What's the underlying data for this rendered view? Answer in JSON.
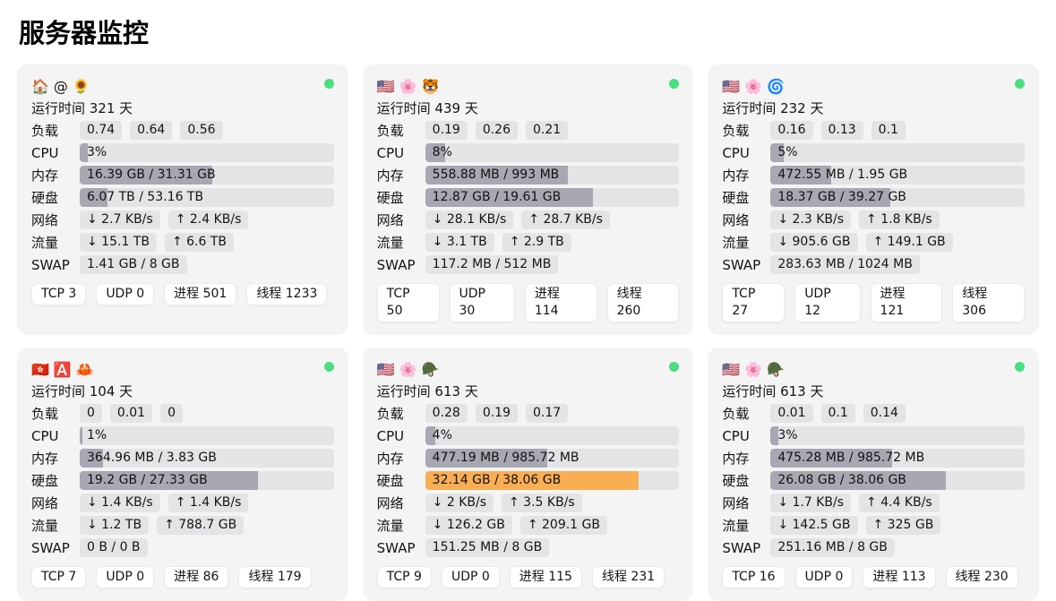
{
  "page": {
    "title": "服务器监控"
  },
  "colors": {
    "card_bg": "#f4f4f5",
    "pill_bg": "#e4e4e7",
    "bar_track": "#e4e4e7",
    "bar_fill": "#a8a8b2",
    "bar_fill_warning": "#f9ae54",
    "online_dot": "#4ade80"
  },
  "labels": {
    "load": "负载",
    "cpu": "CPU",
    "mem": "内存",
    "disk": "硬盘",
    "net": "网络",
    "traffic": "流量",
    "swap": "SWAP"
  },
  "cards": [
    {
      "icons": [
        "🏠",
        "@",
        "🌻"
      ],
      "uptime": "运行时间 321 天",
      "load": [
        "0.74",
        "0.64",
        "0.56"
      ],
      "cpu": {
        "text": "3%",
        "percent": 3
      },
      "mem": {
        "text": "16.39 GB / 31.31 GB",
        "percent": 52
      },
      "disk": {
        "text": "6.07 TB / 53.16 TB",
        "percent": 11,
        "fill": "#a8a8b2"
      },
      "net_down": "↓ 2.7 KB/s",
      "net_up": "↑ 2.4 KB/s",
      "traffic_down": "↓ 15.1 TB",
      "traffic_up": "↑ 6.6 TB",
      "swap": "1.41 GB / 8 GB",
      "badges": [
        "TCP 3",
        "UDP 0",
        "进程 501",
        "线程 1233"
      ]
    },
    {
      "icons": [
        "🇺🇸",
        "🌸",
        "🐯"
      ],
      "uptime": "运行时间 439 天",
      "load": [
        "0.19",
        "0.26",
        "0.21"
      ],
      "cpu": {
        "text": "8%",
        "percent": 8
      },
      "mem": {
        "text": "558.88 MB / 993 MB",
        "percent": 56
      },
      "disk": {
        "text": "12.87 GB / 19.61 GB",
        "percent": 66,
        "fill": "#a8a8b2"
      },
      "net_down": "↓ 28.1 KB/s",
      "net_up": "↑ 28.7 KB/s",
      "traffic_down": "↓ 3.1 TB",
      "traffic_up": "↑ 2.9 TB",
      "swap": "117.2 MB / 512 MB",
      "badges": [
        "TCP 50",
        "UDP 30",
        "进程 114",
        "线程 260"
      ]
    },
    {
      "icons": [
        "🇺🇸",
        "🌸",
        "🌀"
      ],
      "uptime": "运行时间 232 天",
      "load": [
        "0.16",
        "0.13",
        "0.1"
      ],
      "cpu": {
        "text": "5%",
        "percent": 5
      },
      "mem": {
        "text": "472.55 MB / 1.95 GB",
        "percent": 24
      },
      "disk": {
        "text": "18.37 GB / 39.27 GB",
        "percent": 47,
        "fill": "#a8a8b2"
      },
      "net_down": "↓ 2.3 KB/s",
      "net_up": "↑ 1.8 KB/s",
      "traffic_down": "↓ 905.6 GB",
      "traffic_up": "↑ 149.1 GB",
      "swap": "283.63 MB / 1024 MB",
      "badges": [
        "TCP 27",
        "UDP 12",
        "进程 121",
        "线程 306"
      ]
    },
    {
      "icons": [
        "🇭🇰",
        "🅰️",
        "🦀"
      ],
      "uptime": "运行时间 104 天",
      "load": [
        "0",
        "0.01",
        "0"
      ],
      "cpu": {
        "text": "1%",
        "percent": 1
      },
      "mem": {
        "text": "364.96 MB / 3.83 GB",
        "percent": 9
      },
      "disk": {
        "text": "19.2 GB / 27.33 GB",
        "percent": 70,
        "fill": "#a8a8b2"
      },
      "net_down": "↓ 1.4 KB/s",
      "net_up": "↑ 1.4 KB/s",
      "traffic_down": "↓ 1.2 TB",
      "traffic_up": "↑ 788.7 GB",
      "swap": "0 B / 0 B",
      "badges": [
        "TCP 7",
        "UDP 0",
        "进程 86",
        "线程 179"
      ]
    },
    {
      "icons": [
        "🇺🇸",
        "🌸",
        "🪖"
      ],
      "uptime": "运行时间 613 天",
      "load": [
        "0.28",
        "0.19",
        "0.17"
      ],
      "cpu": {
        "text": "4%",
        "percent": 4
      },
      "mem": {
        "text": "477.19 MB / 985.72 MB",
        "percent": 48
      },
      "disk": {
        "text": "32.14 GB / 38.06 GB",
        "percent": 84,
        "fill": "#f9ae54"
      },
      "net_down": "↓ 2 KB/s",
      "net_up": "↑ 3.5 KB/s",
      "traffic_down": "↓ 126.2 GB",
      "traffic_up": "↑ 209.1 GB",
      "swap": "151.25 MB / 8 GB",
      "badges": [
        "TCP 9",
        "UDP 0",
        "进程 115",
        "线程 231"
      ]
    },
    {
      "icons": [
        "🇺🇸",
        "🌸",
        "🪖"
      ],
      "uptime": "运行时间 613 天",
      "load": [
        "0.01",
        "0.1",
        "0.14"
      ],
      "cpu": {
        "text": "3%",
        "percent": 3
      },
      "mem": {
        "text": "475.28 MB / 985.72 MB",
        "percent": 48
      },
      "disk": {
        "text": "26.08 GB / 38.06 GB",
        "percent": 69,
        "fill": "#a8a8b2"
      },
      "net_down": "↓ 1.7 KB/s",
      "net_up": "↑ 4.4 KB/s",
      "traffic_down": "↓ 142.5 GB",
      "traffic_up": "↑ 325 GB",
      "swap": "251.16 MB / 8 GB",
      "badges": [
        "TCP 16",
        "UDP 0",
        "进程 113",
        "线程 230"
      ]
    }
  ]
}
